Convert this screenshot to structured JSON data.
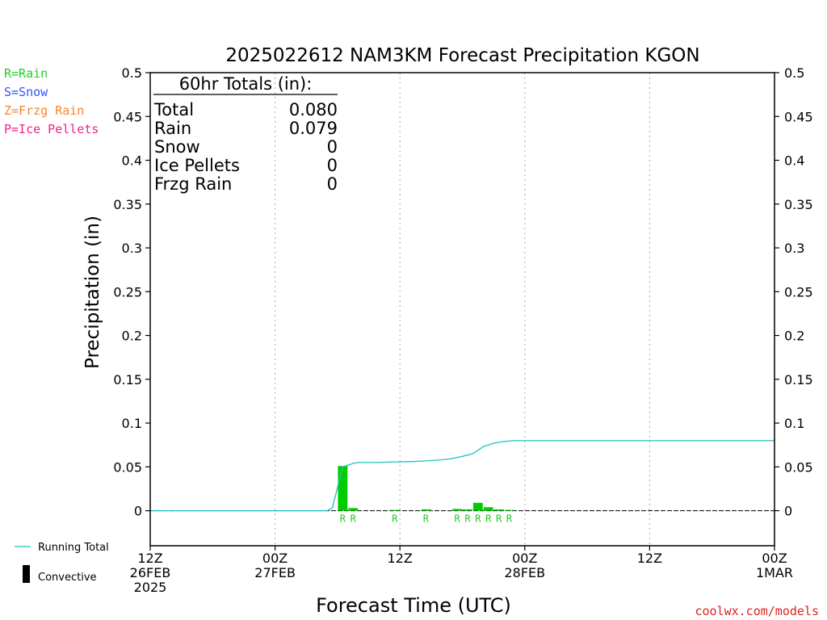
{
  "title": "2025022612 NAM3KM Forecast Precipitation KGON",
  "ylabel": "Precipitation (in)",
  "xlabel": "Forecast Time (UTC)",
  "credit": "coolwx.com/models",
  "type_legend": [
    {
      "text": "R=Rain",
      "color": "#22cc22"
    },
    {
      "text": "S=Snow",
      "color": "#3355ee"
    },
    {
      "text": "Z=Frzg Rain",
      "color": "#ee8833"
    },
    {
      "text": "P=Ice Pellets",
      "color": "#ee2288"
    }
  ],
  "series_legend": {
    "running_total": "Running Total",
    "convective": "Convective",
    "running_total_color": "#20c0c0",
    "convective_color": "#000000"
  },
  "totals": {
    "heading": "60hr Totals (in):",
    "rows": [
      {
        "label": "Total",
        "value": "0.080"
      },
      {
        "label": "Rain",
        "value": "0.079"
      },
      {
        "label": "Snow",
        "value": "0"
      },
      {
        "label": "Ice Pellets",
        "value": "0"
      },
      {
        "label": "Frzg Rain",
        "value": "0"
      }
    ]
  },
  "chart_data": {
    "type": "bar",
    "title": "2025022612 NAM3KM Forecast Precipitation KGON",
    "xlabel": "Forecast Time (UTC)",
    "ylabel": "Precipitation (in)",
    "x_unit": "forecast hour",
    "xlim": [
      0,
      60
    ],
    "ylim": [
      -0.04,
      0.5
    ],
    "yticks": [
      0,
      0.05,
      0.1,
      0.15,
      0.2,
      0.25,
      0.3,
      0.35,
      0.4,
      0.45,
      0.5
    ],
    "ytick_labels": [
      "0",
      "0.05",
      "0.1",
      "0.15",
      "0.2",
      "0.25",
      "0.3",
      "0.35",
      "0.4",
      "0.45",
      "0.5"
    ],
    "xticks": [
      {
        "x": 0,
        "lines": [
          "12Z",
          "26FEB",
          "2025"
        ]
      },
      {
        "x": 12,
        "lines": [
          "00Z",
          "27FEB"
        ]
      },
      {
        "x": 24,
        "lines": [
          "12Z"
        ]
      },
      {
        "x": 36,
        "lines": [
          "00Z",
          "28FEB"
        ]
      },
      {
        "x": 48,
        "lines": [
          "12Z"
        ]
      },
      {
        "x": 60,
        "lines": [
          "00Z",
          "1MAR"
        ]
      }
    ],
    "grid": true,
    "bar_color": "#00cc00",
    "bars": [
      {
        "x": 18.5,
        "value": 0.051,
        "type": "R"
      },
      {
        "x": 19.5,
        "value": 0.003,
        "type": "R"
      },
      {
        "x": 23.5,
        "value": 0.0005,
        "type": "R"
      },
      {
        "x": 26.5,
        "value": 0.0015,
        "type": "R"
      },
      {
        "x": 29.5,
        "value": 0.002,
        "type": "R"
      },
      {
        "x": 30.5,
        "value": 0.0015,
        "type": "R"
      },
      {
        "x": 31.5,
        "value": 0.009,
        "type": "R"
      },
      {
        "x": 32.5,
        "value": 0.004,
        "type": "R"
      },
      {
        "x": 33.5,
        "value": 0.0015,
        "type": "R"
      },
      {
        "x": 34.5,
        "value": 0.0005,
        "type": "R"
      }
    ],
    "running_total": {
      "name": "Running Total",
      "x": [
        0,
        17,
        17.5,
        18.5,
        19.5,
        20,
        22,
        23,
        25,
        26,
        28,
        29,
        30,
        31,
        32,
        33,
        34,
        35,
        36,
        60
      ],
      "y": [
        0,
        0,
        0.003,
        0.05,
        0.054,
        0.055,
        0.055,
        0.0555,
        0.056,
        0.0565,
        0.058,
        0.0595,
        0.062,
        0.065,
        0.073,
        0.077,
        0.079,
        0.08,
        0.08,
        0.08
      ]
    }
  }
}
